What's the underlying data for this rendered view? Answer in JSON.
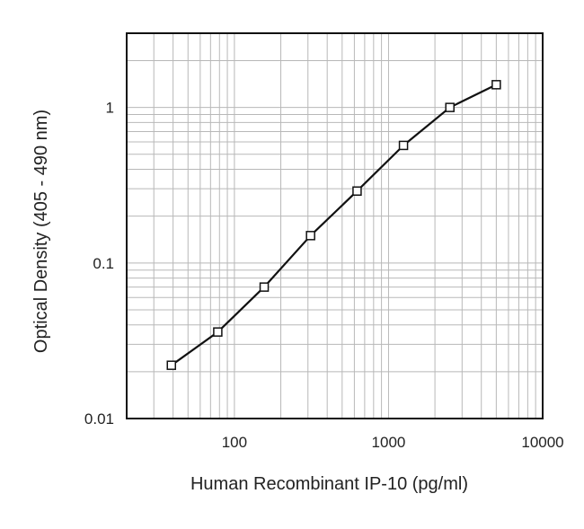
{
  "chart_data": {
    "type": "line",
    "title": "",
    "xlabel": "Human Recombinant IP-10 (pg/ml)",
    "ylabel": "Optical Density (405 - 490 nm)",
    "x_scale": "log",
    "y_scale": "log",
    "xlim": [
      20,
      10000
    ],
    "ylim": [
      0.01,
      3
    ],
    "x_ticks": [
      {
        "value": 100,
        "label": "100"
      },
      {
        "value": 1000,
        "label": "1000"
      },
      {
        "value": 10000,
        "label": "10000"
      }
    ],
    "y_ticks": [
      {
        "value": 0.01,
        "label": "0.01"
      },
      {
        "value": 0.1,
        "label": "0.1"
      },
      {
        "value": 1,
        "label": "1"
      }
    ],
    "grid": true,
    "legend": "none",
    "marker": "open-square",
    "line_color": "#111111",
    "grid_color": "#b8b8b8",
    "series": [
      {
        "x": [
          39,
          78,
          156,
          312,
          625,
          1250,
          2500,
          5000
        ],
        "y": [
          0.022,
          0.036,
          0.07,
          0.15,
          0.29,
          0.57,
          1.0,
          1.4
        ]
      }
    ]
  }
}
